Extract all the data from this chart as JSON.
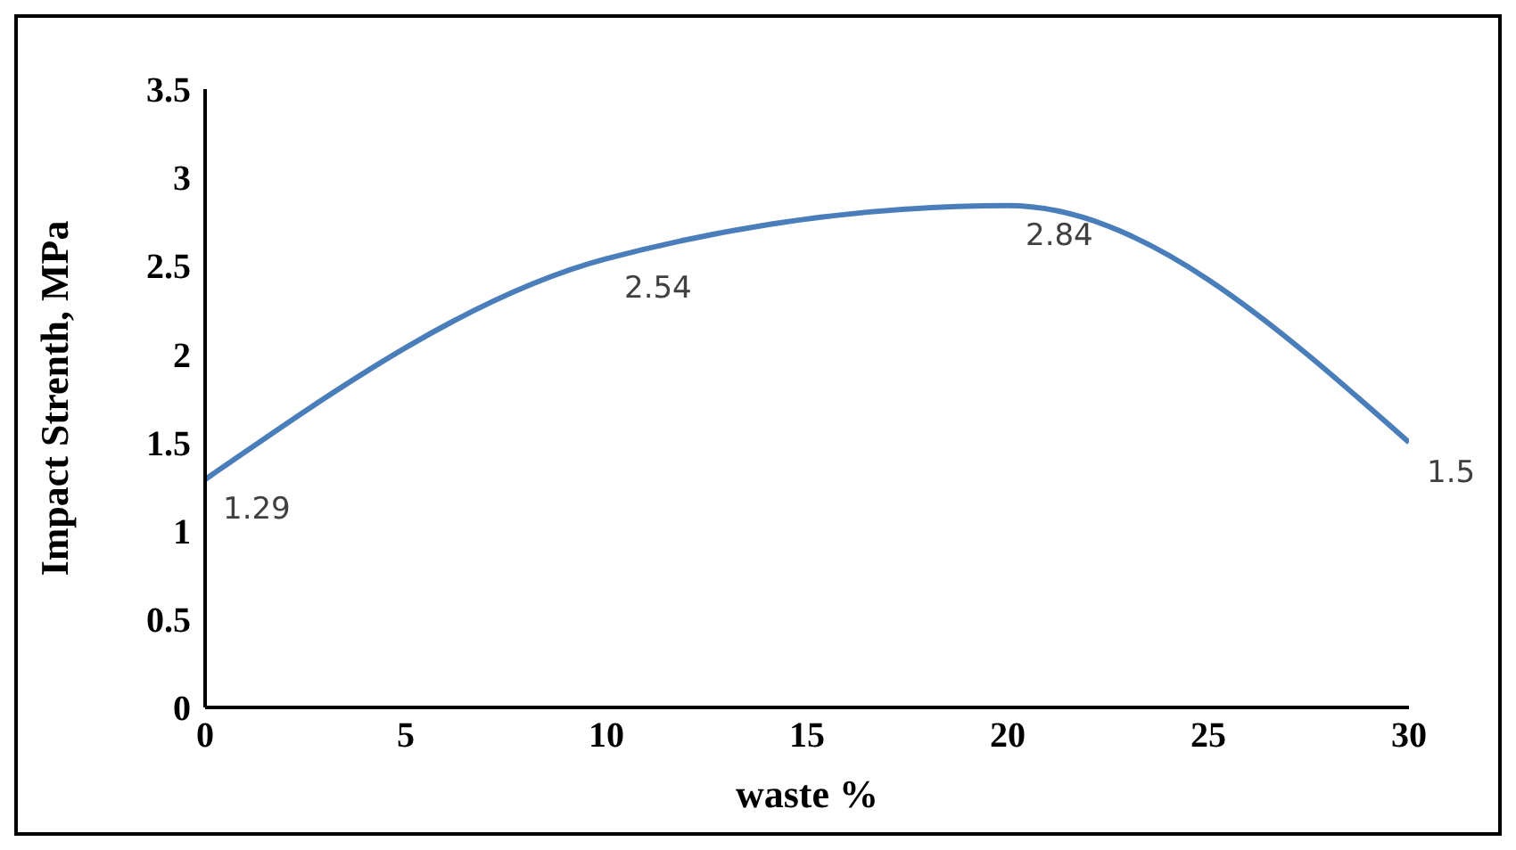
{
  "chart_data": {
    "type": "line",
    "xlabel": "waste %",
    "ylabel": "Impact Strenth, MPa",
    "x": [
      0,
      10,
      20,
      30
    ],
    "series": [
      {
        "color": "#4a7ebb",
        "values": [
          1.29,
          2.54,
          2.84,
          1.5
        ]
      }
    ],
    "xlim": [
      0,
      30
    ],
    "xticks": [
      0,
      5,
      10,
      15,
      20,
      25,
      30
    ],
    "ylim": [
      0,
      3.5
    ],
    "yticks": [
      0,
      0.5,
      1,
      1.5,
      2,
      2.5,
      3,
      3.5
    ],
    "data_labels": true,
    "marker": "none"
  }
}
